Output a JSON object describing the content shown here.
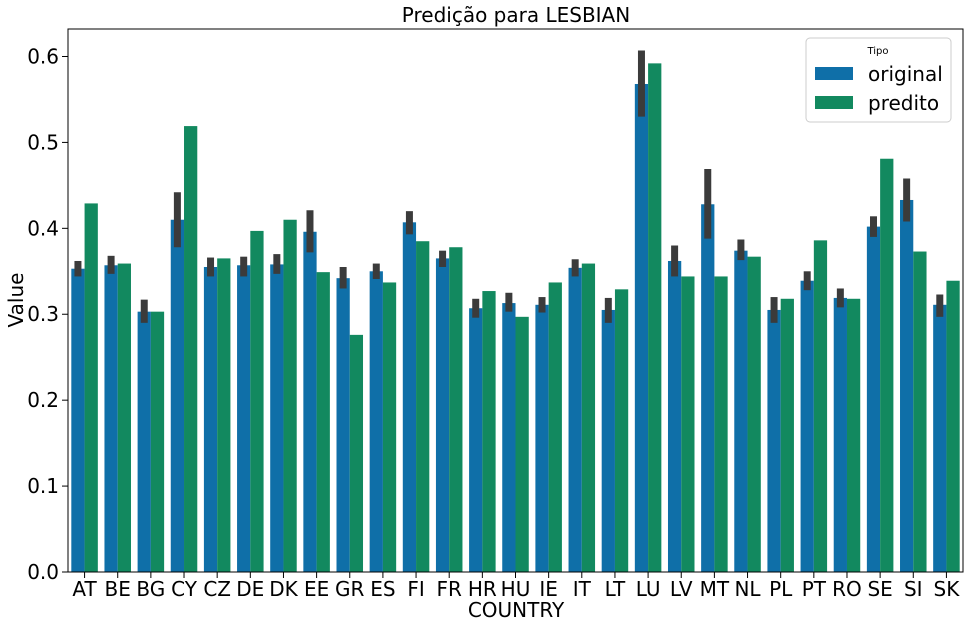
{
  "chart_data": {
    "type": "bar",
    "title": "Predição para LESBIAN",
    "xlabel": "COUNTRY",
    "ylabel": "Value",
    "ylim": [
      0,
      0.632
    ],
    "yticks": [
      0.0,
      0.1,
      0.2,
      0.3,
      0.4,
      0.5,
      0.6
    ],
    "ytick_labels": [
      "0.0",
      "0.1",
      "0.2",
      "0.3",
      "0.4",
      "0.5",
      "0.6"
    ],
    "grid": false,
    "legend": {
      "title": "Tipo",
      "placement": "top-right"
    },
    "categories": [
      "AT",
      "BE",
      "BG",
      "CY",
      "CZ",
      "DE",
      "DK",
      "EE",
      "GR",
      "ES",
      "FI",
      "FR",
      "HR",
      "HU",
      "IE",
      "IT",
      "LT",
      "LU",
      "LV",
      "MT",
      "NL",
      "PL",
      "PT",
      "RO",
      "SE",
      "SI",
      "SK"
    ],
    "series": [
      {
        "name": "original",
        "color": "#0f6fa8",
        "values": [
          0.353,
          0.357,
          0.303,
          0.41,
          0.355,
          0.357,
          0.358,
          0.396,
          0.342,
          0.35,
          0.407,
          0.365,
          0.307,
          0.313,
          0.311,
          0.354,
          0.305,
          0.568,
          0.362,
          0.428,
          0.374,
          0.305,
          0.339,
          0.319,
          0.402,
          0.433,
          0.311
        ],
        "ci_low": [
          0.344,
          0.347,
          0.29,
          0.378,
          0.344,
          0.344,
          0.347,
          0.372,
          0.33,
          0.341,
          0.393,
          0.355,
          0.296,
          0.303,
          0.302,
          0.344,
          0.29,
          0.53,
          0.344,
          0.388,
          0.363,
          0.29,
          0.328,
          0.308,
          0.39,
          0.408,
          0.297
        ],
        "ci_high": [
          0.362,
          0.368,
          0.317,
          0.442,
          0.366,
          0.367,
          0.37,
          0.421,
          0.355,
          0.359,
          0.42,
          0.374,
          0.318,
          0.325,
          0.32,
          0.364,
          0.319,
          0.607,
          0.38,
          0.469,
          0.387,
          0.32,
          0.35,
          0.33,
          0.414,
          0.458,
          0.323
        ]
      },
      {
        "name": "predito",
        "color": "#12895f",
        "values": [
          0.429,
          0.359,
          0.303,
          0.519,
          0.365,
          0.397,
          0.41,
          0.349,
          0.276,
          0.337,
          0.385,
          0.378,
          0.327,
          0.297,
          0.337,
          0.359,
          0.329,
          0.592,
          0.344,
          0.344,
          0.367,
          0.318,
          0.386,
          0.318,
          0.481,
          0.373,
          0.339
        ]
      }
    ],
    "errorbar_color": "#3b3b3b"
  }
}
